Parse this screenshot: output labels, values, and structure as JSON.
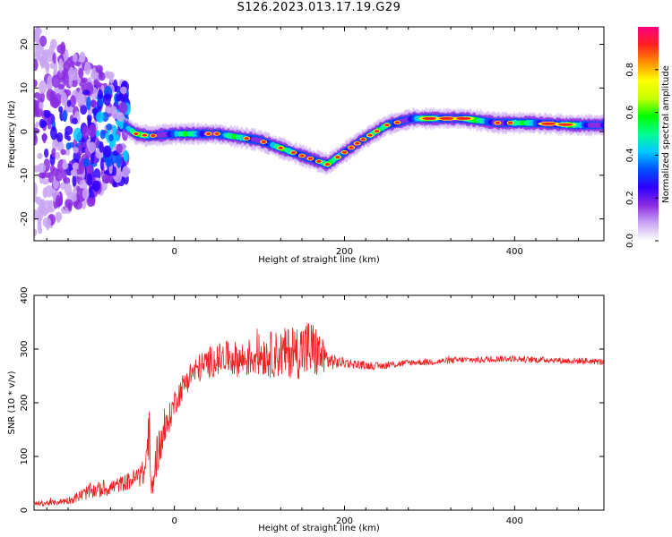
{
  "title": "S126.2023.013.17.19.G29",
  "chart_data": [
    {
      "type": "heatmap",
      "title": "S126.2023.013.17.19.G29",
      "xlabel": "Height of straight line (km)",
      "ylabel": "Frequency (Hz)",
      "xlim": [
        -165,
        505
      ],
      "ylim": [
        -25,
        24
      ],
      "xticks": [
        0,
        200,
        400
      ],
      "yticks": [
        -20,
        -10,
        0,
        10,
        20
      ],
      "colorbar": {
        "label": "Normalized spectral amplitude",
        "range": [
          0,
          1
        ],
        "ticks": [
          0.0,
          0.2,
          0.4,
          0.6,
          0.8
        ],
        "colormap": [
          "#ffffff",
          "#c9a6f2",
          "#8a2be2",
          "#2f00ff",
          "#0050ff",
          "#00c8ff",
          "#00ff90",
          "#00ff00",
          "#c8ff00",
          "#ffff00",
          "#ff9000",
          "#ff2020",
          "#ff0080"
        ]
      },
      "ridge": {
        "x": [
          -60,
          -45,
          -30,
          0,
          50,
          100,
          150,
          180,
          220,
          250,
          280,
          340,
          380,
          420,
          470,
          505
        ],
        "y": [
          1.5,
          -0.5,
          -1.0,
          -0.5,
          -0.5,
          -2.0,
          -5.5,
          -7.5,
          -2.0,
          1.5,
          3.0,
          3.0,
          2.0,
          2.0,
          1.5,
          1.5
        ]
      },
      "noise_region_x": [
        -165,
        -55
      ]
    },
    {
      "type": "line",
      "xlabel": "Height of straight line (km)",
      "ylabel": "SNR (10 * v/v)",
      "xlim": [
        -165,
        505
      ],
      "ylim": [
        0,
        400
      ],
      "xticks": [
        0,
        200,
        400
      ],
      "yticks": [
        0,
        100,
        200,
        300,
        400
      ],
      "series": [
        {
          "color": "#ee2222",
          "x": [
            -165,
            -140,
            -120,
            -100,
            -80,
            -60,
            -45,
            -35,
            -30,
            -27,
            -20,
            -10,
            0,
            10,
            20,
            40,
            60,
            80,
            100,
            120,
            140,
            160,
            170,
            180,
            190,
            200,
            220,
            240,
            260,
            280,
            300,
            320,
            340,
            360,
            380,
            400,
            420,
            440,
            460,
            480,
            505
          ],
          "y": [
            12,
            14,
            20,
            35,
            40,
            50,
            60,
            70,
            150,
            30,
            110,
            150,
            200,
            230,
            255,
            275,
            285,
            280,
            290,
            290,
            295,
            300,
            290,
            280,
            275,
            275,
            270,
            268,
            272,
            275,
            276,
            278,
            280,
            280,
            282,
            282,
            280,
            280,
            278,
            278,
            276
          ],
          "noise_amplitude": [
            5,
            5,
            8,
            15,
            15,
            15,
            20,
            25,
            60,
            20,
            40,
            30,
            25,
            25,
            25,
            30,
            30,
            35,
            40,
            45,
            50,
            60,
            45,
            20,
            12,
            10,
            8,
            7,
            7,
            6,
            6,
            6,
            6,
            6,
            6,
            6,
            6,
            6,
            6,
            6,
            6
          ]
        }
      ]
    }
  ]
}
